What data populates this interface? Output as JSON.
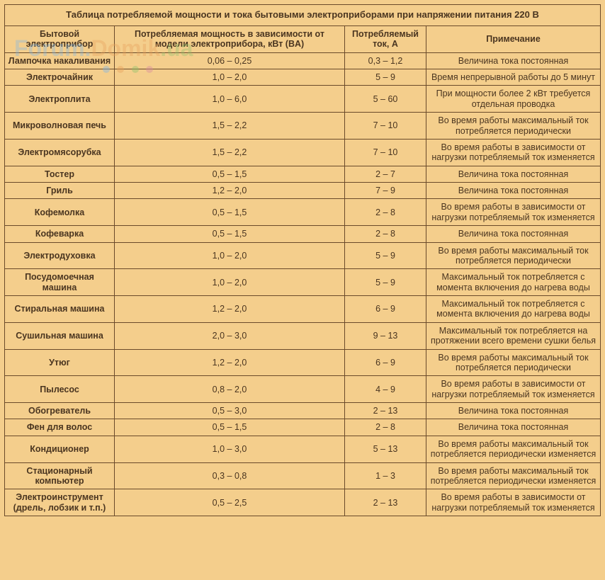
{
  "table": {
    "title": "Таблица потребляемой мощности и тока бытовыми электроприборами при напряжении питания 220 В",
    "columns": [
      "Бытовой электроприбор",
      "Потребляемая мощность в зависимости от модели электроприбора, кВт (BA)",
      "Потребляемый ток, A",
      "Примечание"
    ],
    "rows": [
      {
        "appliance": "Лампочка накаливания",
        "power": "0,06 – 0,25",
        "current": "0,3 – 1,2",
        "note": "Величина тока постоянная"
      },
      {
        "appliance": "Электрочайник",
        "power": "1,0 – 2,0",
        "current": "5 – 9",
        "note": "Время непрерывной работы до 5 минут"
      },
      {
        "appliance": "Электроплита",
        "power": "1,0 – 6,0",
        "current": "5 – 60",
        "note": "При мощности более 2 кВт требуется отдельная проводка"
      },
      {
        "appliance": "Микроволновая печь",
        "power": "1,5 – 2,2",
        "current": "7 – 10",
        "note": "Во время работы максимальный ток потребляется периодически"
      },
      {
        "appliance": "Электромясорубка",
        "power": "1,5 – 2,2",
        "current": "7 – 10",
        "note": "Во время работы в зависимости от нагрузки потребляемый ток изменяется"
      },
      {
        "appliance": "Тостер",
        "power": "0,5 – 1,5",
        "current": "2 – 7",
        "note": "Величина тока постоянная"
      },
      {
        "appliance": "Гриль",
        "power": "1,2 – 2,0",
        "current": "7 – 9",
        "note": "Величина тока постоянная"
      },
      {
        "appliance": "Кофемолка",
        "power": "0,5 – 1,5",
        "current": "2 – 8",
        "note": "Во время работы в зависимости от нагрузки потребляемый ток изменяется"
      },
      {
        "appliance": "Кофеварка",
        "power": "0,5 – 1,5",
        "current": "2 – 8",
        "note": "Величина тока постоянная"
      },
      {
        "appliance": "Электродуховка",
        "power": "1,0 – 2,0",
        "current": "5 – 9",
        "note": "Во время работы максимальный ток потребляется периодически"
      },
      {
        "appliance": "Посудомоечная машина",
        "power": "1,0 – 2,0",
        "current": "5 – 9",
        "note": "Максимальный ток потребляется с момента включения до нагрева воды"
      },
      {
        "appliance": "Стиральная машина",
        "power": "1,2 – 2,0",
        "current": "6 – 9",
        "note": "Максимальный ток потребляется с момента включения до нагрева воды"
      },
      {
        "appliance": "Сушильная машина",
        "power": "2,0 – 3,0",
        "current": "9 – 13",
        "note": "Максимальный ток потребляется на протяжении всего времени сушки белья"
      },
      {
        "appliance": "Утюг",
        "power": "1,2 – 2,0",
        "current": "6 – 9",
        "note": "Во время работы максимальный ток потребляется периодически"
      },
      {
        "appliance": "Пылесос",
        "power": "0,8 – 2,0",
        "current": "4 – 9",
        "note": "Во время работы в зависимости от нагрузки потребляемый ток изменяется"
      },
      {
        "appliance": "Обогреватель",
        "power": "0,5 – 3,0",
        "current": "2 – 13",
        "note": "Величина тока постоянная"
      },
      {
        "appliance": "Фен для волос",
        "power": "0,5 – 1,5",
        "current": "2 – 8",
        "note": "Величина тока постоянная"
      },
      {
        "appliance": "Кондиционер",
        "power": "1,0 – 3,0",
        "current": "5 – 13",
        "note": "Во время работы максимальный ток потребляется периодически изменяется"
      },
      {
        "appliance": "Стационарный компьютер",
        "power": "0,3 – 0,8",
        "current": "1 – 3",
        "note": "Во время работы максимальный ток потребляется периодически изменяется"
      },
      {
        "appliance": "Электроинструмент (дрель, лобзик и т.п.)",
        "power": "0,5 – 2,5",
        "current": "2 – 13",
        "note": "Во время работы в зависимости от нагрузки потребляемый ток изменяется"
      }
    ],
    "styling": {
      "background_color": "#f4ce8c",
      "border_color": "#6a4a2a",
      "text_color": "#4a3520",
      "font_size": 12.5,
      "title_font_size": 13,
      "font_weight_header": "bold"
    }
  },
  "watermark": {
    "text_parts": [
      "Forum.",
      "Domik",
      ".ua"
    ],
    "colors": [
      "#7db5e8",
      "#e8a05a",
      "#8cc26b"
    ],
    "dot_colors": [
      "#7db5e8",
      "#e8a05a",
      "#8cc26b",
      "#d88aa0"
    ]
  }
}
